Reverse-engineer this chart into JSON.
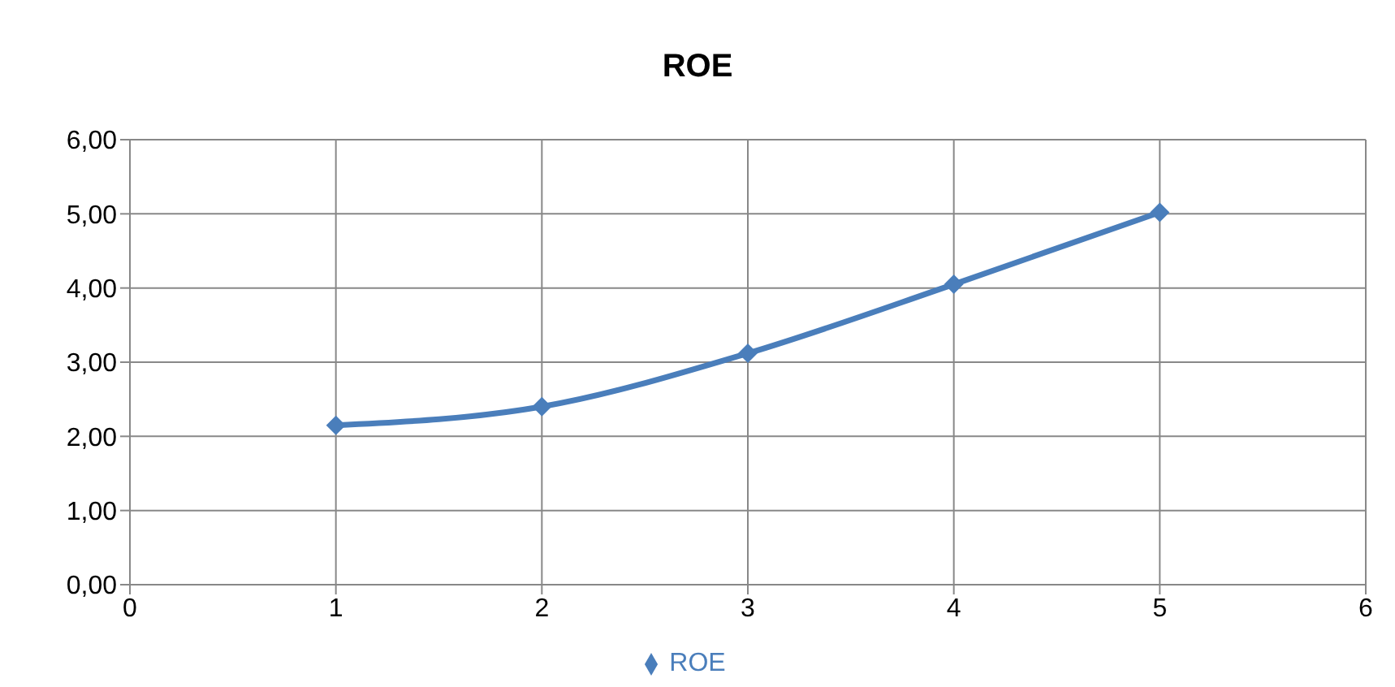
{
  "chart_data": {
    "type": "line",
    "title": "ROE",
    "x": [
      1,
      2,
      3,
      4,
      5
    ],
    "series": [
      {
        "name": "ROE",
        "color": "#4a7ebb",
        "values": [
          2.15,
          2.4,
          3.12,
          4.05,
          5.02
        ]
      }
    ],
    "xlim": [
      0,
      6
    ],
    "xticks": [
      0,
      1,
      2,
      3,
      4,
      5,
      6
    ],
    "ylim": [
      0,
      6
    ],
    "yticks": [
      {
        "value": 0,
        "label": "0,00"
      },
      {
        "value": 1,
        "label": "1,00"
      },
      {
        "value": 2,
        "label": "2,00"
      },
      {
        "value": 3,
        "label": "3,00"
      },
      {
        "value": 4,
        "label": "4,00"
      },
      {
        "value": 5,
        "label": "5,00"
      },
      {
        "value": 6,
        "label": "6,00"
      }
    ],
    "grid": true,
    "legend": "bottom",
    "marker": "diamond",
    "line_style": "solid"
  }
}
